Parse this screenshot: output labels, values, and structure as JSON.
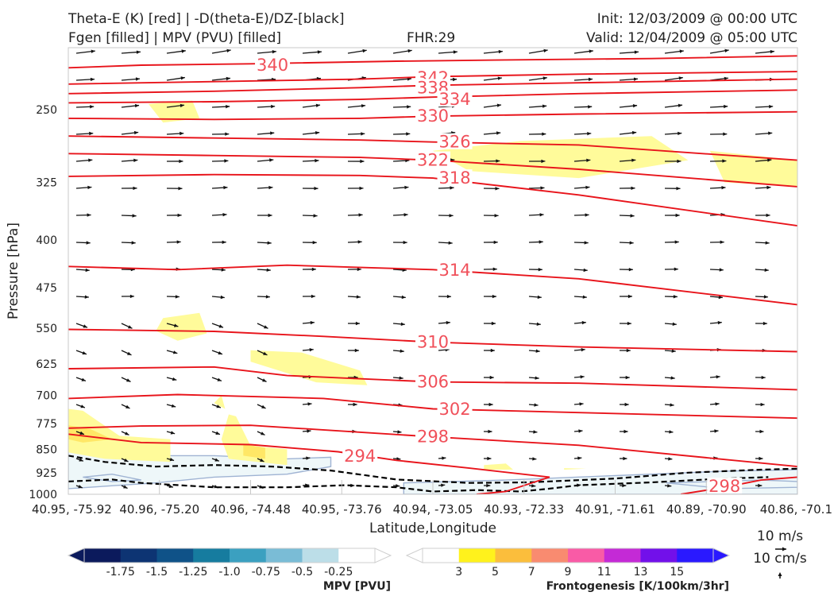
{
  "header": {
    "title_line1": "Theta-E (K) [red] | -D(theta-E)/DZ-[black]",
    "title_line2": "Fgen [filled] | MPV (PVU) [filled]",
    "fhr": "FHR:29",
    "init": "Init: 12/03/2009 @ 00:00 UTC",
    "valid": "Valid: 12/04/2009 @ 05:00 UTC"
  },
  "chart_data": {
    "type": "cross-section",
    "xlabel": "Latitude,Longitude",
    "ylabel": "Pressure [hPa]",
    "ylim": [
      1000,
      200
    ],
    "yscale": "log",
    "y_ticks": [
      250,
      325,
      400,
      475,
      550,
      625,
      700,
      775,
      850,
      925,
      1000
    ],
    "x_ticks": [
      "40.95, -75.92",
      "40.96, -75.20",
      "40.96, -74.48",
      "40.95, -73.76",
      "40.94, -73.05",
      "40.93, -72.33",
      "40.91, -71.61",
      "40.89, -70.90",
      "40.86, -70.1"
    ],
    "x_leftmost_label_fragment": "40.95, -75.92",
    "theta_e_contours": [
      {
        "label": "340",
        "points": [
          [
            0,
            215
          ],
          [
            0.1,
            213
          ],
          [
            0.25,
            212
          ],
          [
            0.45,
            210
          ],
          [
            0.6,
            209
          ],
          [
            0.8,
            208
          ],
          [
            1,
            206
          ]
        ]
      },
      {
        "label": "342",
        "points": [
          [
            0,
            228
          ],
          [
            0.2,
            226
          ],
          [
            0.4,
            224
          ],
          [
            0.5,
            222
          ],
          [
            0.7,
            220
          ],
          [
            1,
            218
          ]
        ]
      },
      {
        "label": "338",
        "points": [
          [
            0,
            236
          ],
          [
            0.2,
            234
          ],
          [
            0.4,
            231
          ],
          [
            0.5,
            229
          ],
          [
            0.7,
            227
          ],
          [
            1,
            224
          ]
        ]
      },
      {
        "label": "334",
        "points": [
          [
            0,
            244
          ],
          [
            0.2,
            243
          ],
          [
            0.4,
            241
          ],
          [
            0.5,
            239
          ],
          [
            0.7,
            236
          ],
          [
            1,
            233
          ]
        ]
      },
      {
        "label": "330",
        "points": [
          [
            0,
            258
          ],
          [
            0.2,
            259
          ],
          [
            0.4,
            258
          ],
          [
            0.5,
            256
          ],
          [
            0.7,
            254
          ],
          [
            1,
            252
          ]
        ]
      },
      {
        "label": "326",
        "points": [
          [
            0,
            275
          ],
          [
            0.2,
            277
          ],
          [
            0.4,
            279
          ],
          [
            0.5,
            281
          ],
          [
            0.7,
            284
          ],
          [
            1,
            300
          ]
        ]
      },
      {
        "label": "322",
        "points": [
          [
            0,
            293
          ],
          [
            0.2,
            295
          ],
          [
            0.4,
            297
          ],
          [
            0.5,
            300
          ],
          [
            0.7,
            310
          ],
          [
            1,
            330
          ]
        ]
      },
      {
        "label": "318",
        "points": [
          [
            0,
            318
          ],
          [
            0.2,
            316
          ],
          [
            0.4,
            317
          ],
          [
            0.5,
            320
          ],
          [
            0.7,
            340
          ],
          [
            1,
            380
          ]
        ]
      },
      {
        "label": "314",
        "points": [
          [
            0,
            440
          ],
          [
            0.15,
            445
          ],
          [
            0.3,
            438
          ],
          [
            0.5,
            445
          ],
          [
            0.7,
            460
          ],
          [
            1,
            505
          ]
        ]
      },
      {
        "label": "310",
        "points": [
          [
            0,
            552
          ],
          [
            0.2,
            556
          ],
          [
            0.35,
            566
          ],
          [
            0.5,
            578
          ],
          [
            0.7,
            588
          ],
          [
            1,
            598
          ]
        ]
      },
      {
        "label": "306",
        "points": [
          [
            0,
            636
          ],
          [
            0.2,
            632
          ],
          [
            0.3,
            652
          ],
          [
            0.5,
            667
          ],
          [
            0.7,
            670
          ],
          [
            1,
            686
          ]
        ]
      },
      {
        "label": "302",
        "points": [
          [
            0,
            708
          ],
          [
            0.15,
            698
          ],
          [
            0.35,
            708
          ],
          [
            0.5,
            735
          ],
          [
            0.7,
            745
          ],
          [
            1,
            760
          ]
        ]
      },
      {
        "label": "298",
        "points": [
          [
            0,
            788
          ],
          [
            0.1,
            782
          ],
          [
            0.25,
            780
          ],
          [
            0.5,
            813
          ],
          [
            0.7,
            838
          ],
          [
            1,
            905
          ]
        ]
      },
      {
        "label": "294",
        "points": [
          [
            0,
            805
          ],
          [
            0.1,
            830
          ],
          [
            0.25,
            836
          ],
          [
            0.37,
            858
          ],
          [
            0.45,
            885
          ],
          [
            0.55,
            910
          ],
          [
            0.66,
            940
          ],
          [
            0.6,
            990
          ],
          [
            0.56,
            1000
          ]
        ]
      },
      {
        "label": "298",
        "points": [
          [
            0.84,
            1000
          ],
          [
            0.9,
            975
          ],
          [
            0.95,
            950
          ],
          [
            1,
            940
          ]
        ]
      }
    ],
    "inline_labels": [
      {
        "text": "340",
        "x": 0.28,
        "p": 213
      },
      {
        "text": "342",
        "x": 0.5,
        "p": 223
      },
      {
        "text": "338",
        "x": 0.5,
        "p": 231
      },
      {
        "text": "334",
        "x": 0.53,
        "p": 241
      },
      {
        "text": "330",
        "x": 0.5,
        "p": 256
      },
      {
        "text": "326",
        "x": 0.53,
        "p": 281
      },
      {
        "text": "322",
        "x": 0.5,
        "p": 300
      },
      {
        "text": "318",
        "x": 0.53,
        "p": 320
      },
      {
        "text": "314",
        "x": 0.53,
        "p": 446
      },
      {
        "text": "310",
        "x": 0.5,
        "p": 578
      },
      {
        "text": "306",
        "x": 0.5,
        "p": 667
      },
      {
        "text": "302",
        "x": 0.53,
        "p": 736
      },
      {
        "text": "298",
        "x": 0.5,
        "p": 813
      },
      {
        "text": "294",
        "x": 0.4,
        "p": 872
      },
      {
        "text": "298",
        "x": 0.9,
        "p": 972
      }
    ],
    "fgen_regions": [
      {
        "value": 3,
        "points": [
          [
            0.11,
            245
          ],
          [
            0.17,
            242
          ],
          [
            0.18,
            258
          ],
          [
            0.13,
            262
          ]
        ]
      },
      {
        "value": 3,
        "points": [
          [
            0.5,
            290
          ],
          [
            0.62,
            280
          ],
          [
            0.8,
            275
          ],
          [
            0.85,
            300
          ],
          [
            0.7,
            320
          ],
          [
            0.55,
            312
          ]
        ]
      },
      {
        "value": 3,
        "points": [
          [
            0.88,
            290
          ],
          [
            1,
            300
          ],
          [
            1,
            330
          ],
          [
            0.9,
            325
          ]
        ]
      },
      {
        "value": 3,
        "points": [
          [
            0.13,
            530
          ],
          [
            0.18,
            520
          ],
          [
            0.19,
            560
          ],
          [
            0.15,
            575
          ],
          [
            0.12,
            555
          ]
        ]
      },
      {
        "value": 3,
        "points": [
          [
            0.25,
            595
          ],
          [
            0.32,
            600
          ],
          [
            0.4,
            640
          ],
          [
            0.41,
            675
          ],
          [
            0.34,
            668
          ],
          [
            0.25,
            620
          ]
        ]
      },
      {
        "value": 3,
        "points": [
          [
            0.2,
            720
          ],
          [
            0.21,
            700
          ],
          [
            0.215,
            735
          ]
        ]
      },
      {
        "value": 3,
        "points": [
          [
            0,
            735
          ],
          [
            0.02,
            740
          ],
          [
            0.07,
            810
          ],
          [
            0.14,
            820
          ],
          [
            0.14,
            890
          ],
          [
            0.05,
            880
          ],
          [
            0,
            860
          ]
        ]
      },
      {
        "value": 5,
        "points": [
          [
            0,
            780
          ],
          [
            0.03,
            790
          ],
          [
            0.06,
            820
          ],
          [
            0.02,
            830
          ],
          [
            0,
            820
          ]
        ]
      },
      {
        "value": 3,
        "points": [
          [
            0.22,
            750
          ],
          [
            0.23,
            755
          ],
          [
            0.25,
            840
          ],
          [
            0.3,
            850
          ],
          [
            0.3,
            900
          ],
          [
            0.22,
            880
          ],
          [
            0.21,
            820
          ]
        ]
      },
      {
        "value": 5,
        "points": [
          [
            0.24,
            835
          ],
          [
            0.27,
            845
          ],
          [
            0.27,
            880
          ],
          [
            0.24,
            870
          ]
        ]
      },
      {
        "value": 3,
        "points": [
          [
            0.57,
            900
          ],
          [
            0.6,
            895
          ],
          [
            0.61,
            915
          ],
          [
            0.57,
            915
          ]
        ]
      },
      {
        "value": 3,
        "points": [
          [
            0.68,
            910
          ],
          [
            0.71,
            912
          ],
          [
            0.68,
            915
          ]
        ]
      }
    ],
    "mpv_regions": [
      {
        "value": -0.25,
        "points": [
          [
            0,
            855
          ],
          [
            0.08,
            852
          ],
          [
            0.1,
            870
          ],
          [
            0.2,
            870
          ],
          [
            0.3,
            880
          ],
          [
            0.36,
            875
          ],
          [
            0.36,
            905
          ],
          [
            0.3,
            930
          ],
          [
            0.2,
            940
          ],
          [
            0.12,
            960
          ],
          [
            0,
            980
          ]
        ]
      },
      {
        "value": -0.25,
        "points": [
          [
            0.46,
            960
          ],
          [
            0.6,
            950
          ],
          [
            0.75,
            935
          ],
          [
            0.9,
            920
          ],
          [
            1,
            915
          ],
          [
            1,
            1000
          ],
          [
            0.46,
            1000
          ]
        ]
      },
      {
        "value": -0.25,
        "points": [
          [
            0.02,
            940
          ],
          [
            0.06,
            930
          ],
          [
            0.1,
            950
          ],
          [
            0.06,
            955
          ]
        ]
      },
      {
        "value": -0.25,
        "points": [
          [
            0.82,
            960
          ],
          [
            0.95,
            950
          ],
          [
            1,
            955
          ],
          [
            1,
            975
          ],
          [
            0.9,
            980
          ]
        ]
      }
    ],
    "dthetae_contours": [
      {
        "points": [
          [
            0,
            870
          ],
          [
            0.05,
            890
          ],
          [
            0.12,
            905
          ],
          [
            0.2,
            900
          ],
          [
            0.28,
            905
          ],
          [
            0.36,
            918
          ],
          [
            0.45,
            948
          ],
          [
            0.55,
            960
          ],
          [
            0.63,
            958
          ],
          [
            0.75,
            945
          ],
          [
            0.85,
            925
          ],
          [
            0.95,
            915
          ],
          [
            1,
            912
          ]
        ]
      },
      {
        "points": [
          [
            0,
            955
          ],
          [
            0.06,
            948
          ],
          [
            0.1,
            960
          ],
          [
            0.2,
            975
          ],
          [
            0.3,
            975
          ],
          [
            0.38,
            968
          ],
          [
            0.45,
            975
          ],
          [
            0.5,
            990
          ],
          [
            0.56,
            985
          ],
          [
            0.62,
            990
          ],
          [
            0.66,
            980
          ],
          [
            0.7,
            968
          ],
          [
            0.8,
            958
          ],
          [
            0.9,
            945
          ],
          [
            0.96,
            940
          ]
        ]
      }
    ],
    "wind_barb_scale": {
      "horizontal": "10 m/s",
      "vertical": "10 cm/s"
    }
  },
  "colorbars": {
    "mpv": {
      "label": "MPV [PVU]",
      "ticks": [
        "-1.75",
        "-1.5",
        "-1.25",
        "-1.0",
        "-0.75",
        "-0.5",
        "-0.25"
      ],
      "colors": [
        "#0b1a5c",
        "#0d3473",
        "#0f5288",
        "#167c9f",
        "#3ba0c0",
        "#7abcd6",
        "#bcdee8",
        "#ffffff"
      ]
    },
    "fgen": {
      "label": "Frontogenesis [K/100km/3hr]",
      "ticks": [
        "3",
        "5",
        "7",
        "9",
        "11",
        "13",
        "15"
      ],
      "colors": [
        "#ffffff",
        "#fff21c",
        "#fbbe3c",
        "#f98b70",
        "#f95ba6",
        "#c42ad6",
        "#7210ea",
        "#2a19ff"
      ]
    }
  }
}
